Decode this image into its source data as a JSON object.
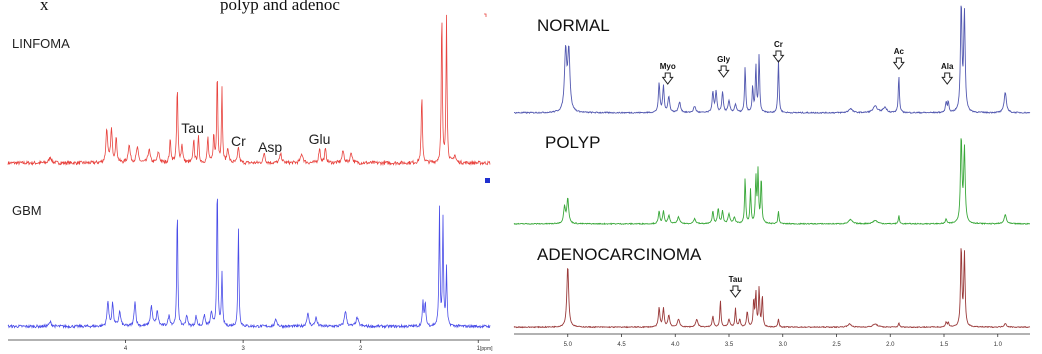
{
  "caption": {
    "left": "x",
    "middle": "polyp and adenoc"
  },
  "chart_data": [
    {
      "type": "line",
      "chart_title": "",
      "xlabel": "",
      "ylabel": "",
      "x_unit_label": "[ppm]",
      "xlim": [
        5.0,
        0.9
      ],
      "x_reversed": true,
      "x_ticks": [
        4,
        3,
        2,
        1
      ],
      "x_tick_labels": [
        "4",
        "3",
        "2",
        "1"
      ],
      "series": [
        {
          "name": "LINFOMA",
          "color": "#e8443f",
          "baseline": 0.06,
          "noise": 0.012,
          "peaks": [
            [
              4.64,
              0.04,
              0.012
            ],
            [
              4.16,
              0.23,
              0.008
            ],
            [
              4.12,
              0.22,
              0.008
            ],
            [
              4.08,
              0.16,
              0.008
            ],
            [
              3.97,
              0.12,
              0.01
            ],
            [
              3.9,
              0.1,
              0.01
            ],
            [
              3.8,
              0.09,
              0.01
            ],
            [
              3.72,
              0.07,
              0.01
            ],
            [
              3.62,
              0.15,
              0.007
            ],
            [
              3.56,
              0.5,
              0.006
            ],
            [
              3.52,
              0.12,
              0.007
            ],
            [
              3.42,
              0.16,
              0.006
            ],
            [
              3.38,
              0.17,
              0.006
            ],
            [
              3.3,
              0.17,
              0.006
            ],
            [
              3.25,
              0.18,
              0.006
            ],
            [
              3.22,
              0.63,
              0.005
            ],
            [
              3.18,
              0.49,
              0.005
            ],
            [
              3.13,
              0.1,
              0.008
            ],
            [
              3.04,
              0.11,
              0.007
            ],
            [
              2.82,
              0.07,
              0.008
            ],
            [
              2.68,
              0.06,
              0.01
            ],
            [
              2.5,
              0.06,
              0.012
            ],
            [
              2.35,
              0.1,
              0.008
            ],
            [
              2.3,
              0.09,
              0.008
            ],
            [
              2.15,
              0.08,
              0.01
            ],
            [
              2.08,
              0.07,
              0.01
            ],
            [
              1.48,
              0.44,
              0.006
            ],
            [
              1.31,
              1.02,
              0.005
            ],
            [
              1.27,
              0.98,
              0.005
            ],
            [
              1.2,
              0.05,
              0.01
            ]
          ]
        },
        {
          "name": "GBM",
          "color": "#4a4de8",
          "baseline": 0.06,
          "noise": 0.01,
          "peaks": [
            [
              4.64,
              0.03,
              0.012
            ],
            [
              4.15,
              0.18,
              0.008
            ],
            [
              4.11,
              0.16,
              0.008
            ],
            [
              4.05,
              0.1,
              0.01
            ],
            [
              3.92,
              0.18,
              0.008
            ],
            [
              3.78,
              0.14,
              0.01
            ],
            [
              3.73,
              0.1,
              0.01
            ],
            [
              3.63,
              0.07,
              0.01
            ],
            [
              3.56,
              0.83,
              0.005
            ],
            [
              3.48,
              0.08,
              0.008
            ],
            [
              3.4,
              0.07,
              0.008
            ],
            [
              3.33,
              0.08,
              0.008
            ],
            [
              3.27,
              0.1,
              0.008
            ],
            [
              3.22,
              1.02,
              0.005
            ],
            [
              3.18,
              0.38,
              0.005
            ],
            [
              3.04,
              0.7,
              0.005
            ],
            [
              2.72,
              0.05,
              0.01
            ],
            [
              2.45,
              0.09,
              0.01
            ],
            [
              2.38,
              0.06,
              0.01
            ],
            [
              2.13,
              0.11,
              0.01
            ],
            [
              2.03,
              0.06,
              0.012
            ],
            [
              1.47,
              0.17,
              0.006
            ],
            [
              1.45,
              0.16,
              0.006
            ],
            [
              1.33,
              0.82,
              0.005
            ],
            [
              1.3,
              0.75,
              0.005
            ],
            [
              1.27,
              0.4,
              0.005
            ]
          ]
        }
      ],
      "annotations": [
        {
          "text": "Tau",
          "x": 3.43
        },
        {
          "text": "Cr",
          "x": 3.04
        },
        {
          "text": "Asp",
          "x": 2.77
        },
        {
          "text": "Glu",
          "x": 2.35
        }
      ]
    },
    {
      "type": "line",
      "chart_title": "",
      "xlabel": "",
      "ylabel": "",
      "xlim": [
        5.5,
        0.7
      ],
      "x_reversed": true,
      "x_ticks": [
        5.0,
        4.5,
        4.0,
        3.5,
        3.0,
        2.5,
        2.0,
        1.5,
        1.0
      ],
      "x_tick_labels": [
        "5.0",
        "4.5",
        "4.0",
        "3.5",
        "3.0",
        "2.5",
        "2.0",
        "1.5",
        "1.0"
      ],
      "series": [
        {
          "name": "NORMAL",
          "color": "#5359b0",
          "baseline": 0.05,
          "noise": 0.006,
          "peaks": [
            [
              5.02,
              0.58,
              0.012
            ],
            [
              4.99,
              0.58,
              0.012
            ],
            [
              4.15,
              0.28,
              0.008
            ],
            [
              4.11,
              0.25,
              0.008
            ],
            [
              4.06,
              0.15,
              0.01
            ],
            [
              3.96,
              0.1,
              0.012
            ],
            [
              3.82,
              0.06,
              0.012
            ],
            [
              3.65,
              0.2,
              0.008
            ],
            [
              3.62,
              0.2,
              0.008
            ],
            [
              3.56,
              0.2,
              0.008
            ],
            [
              3.5,
              0.11,
              0.01
            ],
            [
              3.44,
              0.08,
              0.01
            ],
            [
              3.35,
              0.45,
              0.006
            ],
            [
              3.28,
              0.25,
              0.006
            ],
            [
              3.25,
              0.45,
              0.006
            ],
            [
              3.22,
              0.55,
              0.006
            ],
            [
              3.04,
              0.51,
              0.006
            ],
            [
              2.37,
              0.04,
              0.02
            ],
            [
              2.14,
              0.06,
              0.025
            ],
            [
              2.05,
              0.05,
              0.02
            ],
            [
              1.92,
              0.36,
              0.006
            ],
            [
              1.48,
              0.1,
              0.007
            ],
            [
              1.46,
              0.1,
              0.007
            ],
            [
              1.34,
              1.05,
              0.008
            ],
            [
              1.31,
              0.95,
              0.008
            ],
            [
              0.93,
              0.2,
              0.012
            ]
          ]
        },
        {
          "name": "POLYP",
          "color": "#3aa83a",
          "baseline": 0.05,
          "noise": 0.006,
          "peaks": [
            [
              5.03,
              0.2,
              0.01
            ],
            [
              5.0,
              0.3,
              0.01
            ],
            [
              4.15,
              0.15,
              0.008
            ],
            [
              4.11,
              0.15,
              0.008
            ],
            [
              4.06,
              0.1,
              0.01
            ],
            [
              3.97,
              0.08,
              0.012
            ],
            [
              3.82,
              0.06,
              0.012
            ],
            [
              3.65,
              0.15,
              0.008
            ],
            [
              3.6,
              0.18,
              0.008
            ],
            [
              3.56,
              0.15,
              0.008
            ],
            [
              3.5,
              0.12,
              0.01
            ],
            [
              3.45,
              0.08,
              0.01
            ],
            [
              3.35,
              0.55,
              0.006
            ],
            [
              3.3,
              0.4,
              0.006
            ],
            [
              3.25,
              0.55,
              0.006
            ],
            [
              3.23,
              0.62,
              0.006
            ],
            [
              3.2,
              0.55,
              0.006
            ],
            [
              3.04,
              0.15,
              0.006
            ],
            [
              2.37,
              0.05,
              0.02
            ],
            [
              2.14,
              0.04,
              0.025
            ],
            [
              1.92,
              0.1,
              0.006
            ],
            [
              1.48,
              0.06,
              0.007
            ],
            [
              1.34,
              1.05,
              0.008
            ],
            [
              1.31,
              0.9,
              0.008
            ],
            [
              0.93,
              0.11,
              0.012
            ]
          ]
        },
        {
          "name": "ADENOCARCINOMA",
          "color": "#9a3a3a",
          "baseline": 0.05,
          "noise": 0.006,
          "peaks": [
            [
              5.0,
              0.8,
              0.01
            ],
            [
              4.15,
              0.25,
              0.008
            ],
            [
              4.11,
              0.24,
              0.008
            ],
            [
              4.06,
              0.15,
              0.01
            ],
            [
              3.97,
              0.1,
              0.012
            ],
            [
              3.8,
              0.1,
              0.012
            ],
            [
              3.65,
              0.14,
              0.008
            ],
            [
              3.58,
              0.35,
              0.006
            ],
            [
              3.5,
              0.1,
              0.01
            ],
            [
              3.44,
              0.24,
              0.006
            ],
            [
              3.4,
              0.1,
              0.008
            ],
            [
              3.33,
              0.2,
              0.008
            ],
            [
              3.27,
              0.35,
              0.006
            ],
            [
              3.25,
              0.45,
              0.006
            ],
            [
              3.22,
              0.5,
              0.006
            ],
            [
              3.19,
              0.4,
              0.006
            ],
            [
              3.04,
              0.11,
              0.006
            ],
            [
              2.38,
              0.04,
              0.02
            ],
            [
              2.14,
              0.04,
              0.025
            ],
            [
              1.92,
              0.06,
              0.006
            ],
            [
              1.48,
              0.06,
              0.007
            ],
            [
              1.46,
              0.06,
              0.007
            ],
            [
              1.34,
              1.05,
              0.007
            ],
            [
              1.31,
              0.95,
              0.007
            ],
            [
              0.93,
              0.05,
              0.012
            ]
          ]
        }
      ],
      "annotations": [
        {
          "text": "Myo",
          "x": 4.07,
          "panel": "NORMAL"
        },
        {
          "text": "Gly",
          "x": 3.55,
          "panel": "NORMAL"
        },
        {
          "text": "Cr",
          "x": 3.04,
          "panel": "NORMAL"
        },
        {
          "text": "Ac",
          "x": 1.92,
          "panel": "NORMAL"
        },
        {
          "text": "Ala",
          "x": 1.47,
          "panel": "NORMAL"
        },
        {
          "text": "Tau",
          "x": 3.44,
          "panel": "ADENOCARCINOMA"
        }
      ]
    }
  ]
}
